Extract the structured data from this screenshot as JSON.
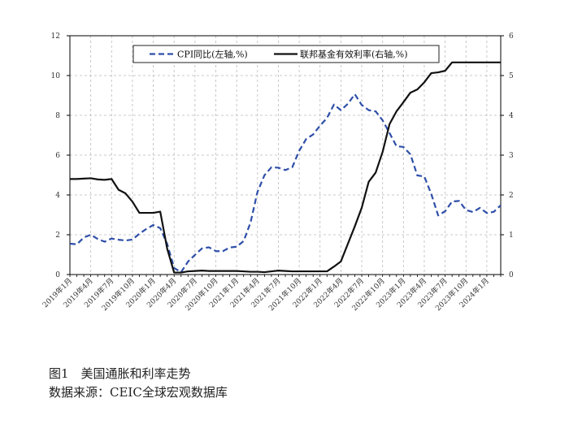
{
  "chart_data": {
    "type": "line",
    "x_labels": [
      "2019年1月",
      "2019年4月",
      "2019年7月",
      "2019年10月",
      "2020年1月",
      "2020年4月",
      "2020年7月",
      "2020年10月",
      "2021年1月",
      "2021年4月",
      "2021年7月",
      "2021年10月",
      "2022年1月",
      "2022年4月",
      "2022年7月",
      "2022年10月",
      "2023年1月",
      "2023年4月",
      "2023年7月",
      "2023年10月",
      "2024年1月"
    ],
    "x_months": [
      "2019-01",
      "2019-02",
      "2019-03",
      "2019-04",
      "2019-05",
      "2019-06",
      "2019-07",
      "2019-08",
      "2019-09",
      "2019-10",
      "2019-11",
      "2019-12",
      "2020-01",
      "2020-02",
      "2020-03",
      "2020-04",
      "2020-05",
      "2020-06",
      "2020-07",
      "2020-08",
      "2020-09",
      "2020-10",
      "2020-11",
      "2020-12",
      "2021-01",
      "2021-02",
      "2021-03",
      "2021-04",
      "2021-05",
      "2021-06",
      "2021-07",
      "2021-08",
      "2021-09",
      "2021-10",
      "2021-11",
      "2021-12",
      "2022-01",
      "2022-02",
      "2022-03",
      "2022-04",
      "2022-05",
      "2022-06",
      "2022-07",
      "2022-08",
      "2022-09",
      "2022-10",
      "2022-11",
      "2022-12",
      "2023-01",
      "2023-02",
      "2023-03",
      "2023-04",
      "2023-05",
      "2023-06",
      "2023-07",
      "2023-08",
      "2023-09",
      "2023-10",
      "2023-11",
      "2023-12",
      "2024-01",
      "2024-02",
      "2024-03"
    ],
    "left_axis": {
      "ylim": [
        0,
        12
      ],
      "ticks": [
        "0",
        "2",
        "4",
        "6",
        "8",
        "10",
        "12"
      ]
    },
    "right_axis": {
      "ylim": [
        0,
        6
      ],
      "ticks": [
        "0",
        "1",
        "2",
        "3",
        "4",
        "5",
        "6"
      ]
    },
    "grid": true,
    "legend_position": "top",
    "series": [
      {
        "name": "CPI同比(左轴,%)",
        "axis": "left",
        "style": "dashed",
        "color": "#2E4FA8",
        "values": [
          1.55,
          1.52,
          1.86,
          2.0,
          1.79,
          1.65,
          1.81,
          1.75,
          1.71,
          1.76,
          2.05,
          2.29,
          2.49,
          2.33,
          1.54,
          0.33,
          0.12,
          0.65,
          0.99,
          1.31,
          1.37,
          1.18,
          1.17,
          1.36,
          1.4,
          1.68,
          2.62,
          4.16,
          4.99,
          5.39,
          5.37,
          5.25,
          5.39,
          6.22,
          6.81,
          7.04,
          7.48,
          7.87,
          8.54,
          8.26,
          8.58,
          9.06,
          8.52,
          8.26,
          8.2,
          7.75,
          7.11,
          6.45,
          6.41,
          6.04,
          4.98,
          4.93,
          4.05,
          2.97,
          3.18,
          3.67,
          3.7,
          3.24,
          3.14,
          3.35,
          3.09,
          3.15,
          3.48
        ]
      },
      {
        "name": "联邦基金有效利率(右轴,%)",
        "axis": "right",
        "style": "solid",
        "color": "#111111",
        "values": [
          2.4,
          2.4,
          2.41,
          2.42,
          2.39,
          2.38,
          2.4,
          2.13,
          2.04,
          1.83,
          1.55,
          1.55,
          1.55,
          1.58,
          0.65,
          0.05,
          0.05,
          0.08,
          0.09,
          0.1,
          0.09,
          0.09,
          0.09,
          0.09,
          0.09,
          0.08,
          0.07,
          0.07,
          0.06,
          0.08,
          0.1,
          0.09,
          0.08,
          0.08,
          0.08,
          0.08,
          0.08,
          0.08,
          0.2,
          0.33,
          0.77,
          1.21,
          1.68,
          2.33,
          2.56,
          3.08,
          3.78,
          4.1,
          4.33,
          4.57,
          4.65,
          4.83,
          5.06,
          5.08,
          5.12,
          5.33,
          5.33,
          5.33,
          5.33,
          5.33,
          5.33,
          5.33,
          5.33
        ]
      }
    ]
  },
  "caption": {
    "figure_title": "图1　美国通胀和利率走势",
    "source": "数据来源：CEIC全球宏观数据库"
  }
}
